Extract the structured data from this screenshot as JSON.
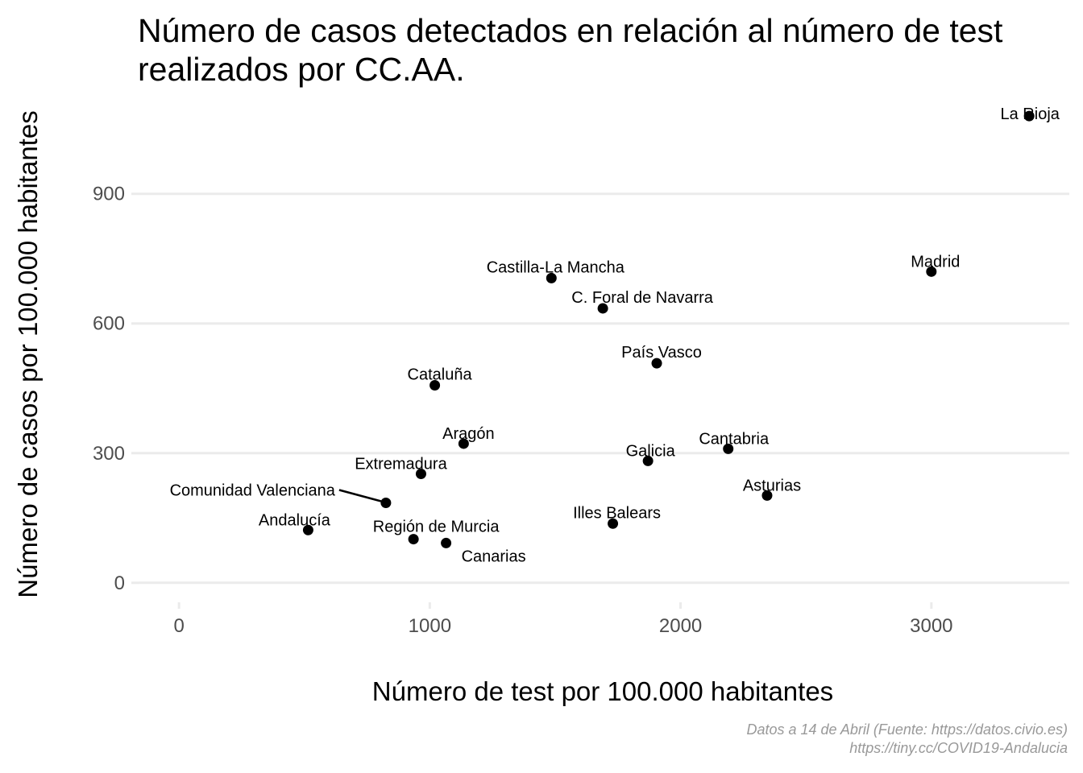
{
  "chart_data": {
    "type": "scatter",
    "title_lines": [
      "Número de casos detectados en relación al número de test",
      "realizados por CC.AA."
    ],
    "xlabel": "Número de test por 100.000 habitantes",
    "ylabel": "Número de casos por 100.000 habitantes",
    "xlim": [
      -190,
      3550
    ],
    "ylim": [
      -60,
      1110
    ],
    "x_ticks": [
      0,
      1000,
      2000,
      3000
    ],
    "x_tick_labels": [
      "0",
      "1000",
      "2000",
      "3000"
    ],
    "y_ticks": [
      0,
      300,
      600,
      900
    ],
    "y_tick_labels": [
      "0",
      "300",
      "600",
      "900"
    ],
    "grid": "horizontal",
    "points": [
      {
        "label": "La Rioja",
        "x": 3390,
        "y": 1080
      },
      {
        "label": "Madrid",
        "x": 3000,
        "y": 720
      },
      {
        "label": "Castilla-La Mancha",
        "x": 1485,
        "y": 705
      },
      {
        "label": "C. Foral de Navarra",
        "x": 1690,
        "y": 635
      },
      {
        "label": "País Vasco",
        "x": 1905,
        "y": 508
      },
      {
        "label": "Cataluña",
        "x": 1020,
        "y": 457
      },
      {
        "label": "Aragón",
        "x": 1135,
        "y": 322
      },
      {
        "label": "Cantabria",
        "x": 2190,
        "y": 310
      },
      {
        "label": "Galicia",
        "x": 1870,
        "y": 282
      },
      {
        "label": "Extremadura",
        "x": 965,
        "y": 252
      },
      {
        "label": "Asturias",
        "x": 2345,
        "y": 202
      },
      {
        "label": "Comunidad Valenciana",
        "x": 825,
        "y": 185
      },
      {
        "label": "Illes Balears",
        "x": 1730,
        "y": 137
      },
      {
        "label": "Andalucía",
        "x": 515,
        "y": 122
      },
      {
        "label": "Región de Murcia",
        "x": 935,
        "y": 101
      },
      {
        "label": "Canarias",
        "x": 1065,
        "y": 92
      }
    ],
    "caption_lines": [
      "Datos a 14 de Abril (Fuente: https://datos.civio.es)",
      "https://tiny.cc/COVID19-Andalucia"
    ],
    "point_color": "#000000"
  }
}
